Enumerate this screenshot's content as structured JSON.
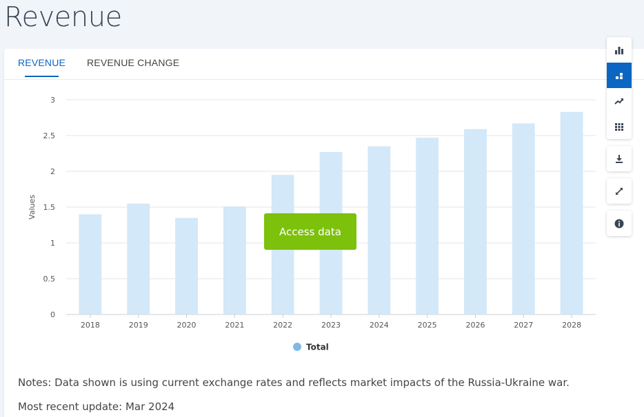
{
  "page": {
    "title": "Revenue"
  },
  "tabs": [
    {
      "label": "REVENUE",
      "active": true
    },
    {
      "label": "REVENUE CHANGE",
      "active": false
    }
  ],
  "toolbar": {
    "groups": [
      [
        "bar-chart-icon",
        "stacked-bar-icon",
        "trend-line-icon",
        "table-grid-icon"
      ],
      [
        "download-icon"
      ],
      [
        "expand-icon"
      ],
      [
        "info-icon"
      ]
    ],
    "active": "stacked-bar-icon"
  },
  "access_button": {
    "label": "Access data"
  },
  "notes": "Notes: Data shown is using current exchange rates and reflects market impacts of the Russia-Ukraine war.",
  "update": "Most recent update: Mar 2024",
  "colors": {
    "accent": "#0b65c2",
    "bar": "#d3e8f8",
    "legend_dot": "#7fb9e8",
    "cta": "#7cc10b"
  },
  "chart_data": {
    "type": "bar",
    "categories": [
      "2018",
      "2019",
      "2020",
      "2021",
      "2022",
      "2023",
      "2024",
      "2025",
      "2026",
      "2027",
      "2028"
    ],
    "series": [
      {
        "name": "Total",
        "values": [
          1.4,
          1.55,
          1.35,
          1.51,
          1.95,
          2.27,
          2.35,
          2.47,
          2.59,
          2.67,
          2.83
        ]
      }
    ],
    "ylabel": "Values",
    "xlabel": "",
    "ylim": [
      0,
      3
    ],
    "yticks": [
      "0",
      "0.5",
      "1",
      "1.5",
      "2",
      "2.5",
      "3"
    ],
    "grid": true,
    "legend": "bottom-center"
  }
}
